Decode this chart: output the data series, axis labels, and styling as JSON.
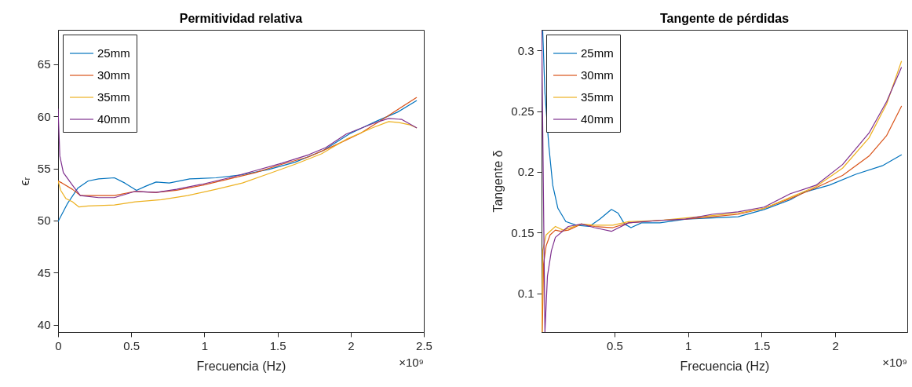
{
  "chart_data": [
    {
      "type": "line",
      "title": "Permitividad relativa",
      "xlabel": "Frecuencia (Hz)",
      "ylabel": "ϵᵣ",
      "annotations": [
        "×10⁹"
      ],
      "xlim": [
        0,
        2.5
      ],
      "ylim": [
        39.3,
        68.3
      ],
      "xticks": [
        0,
        0.5,
        1,
        1.5,
        2,
        2.5
      ],
      "yticks": [
        40,
        45,
        50,
        55,
        60,
        65
      ],
      "grid": false,
      "legend": "top left",
      "line_style": "solid",
      "series": [
        {
          "name": "25mm",
          "color": "#0072bd",
          "x": [
            0,
            0.063,
            0.134,
            0.206,
            0.277,
            0.385,
            0.456,
            0.536,
            0.6,
            0.67,
            0.76,
            0.9,
            1.08,
            1.26,
            1.44,
            1.62,
            1.81,
            1.99,
            2.17,
            2.32,
            2.45
          ],
          "values": [
            49.9,
            51.6,
            53.1,
            53.8,
            54.0,
            54.1,
            53.6,
            52.9,
            53.3,
            53.7,
            53.6,
            54.0,
            54.1,
            54.4,
            54.9,
            55.6,
            56.7,
            58.3,
            59.5,
            60.4,
            61.5
          ]
        },
        {
          "name": "30mm",
          "color": "#d95319",
          "x": [
            0,
            0.027,
            0.098,
            0.152,
            0.277,
            0.385,
            0.527,
            0.67,
            0.81,
            0.99,
            1.17,
            1.35,
            1.53,
            1.71,
            1.89,
            2.07,
            2.25,
            2.45
          ],
          "values": [
            53.8,
            53.6,
            53.0,
            52.4,
            52.4,
            52.4,
            52.8,
            52.7,
            52.9,
            53.4,
            54.0,
            54.6,
            55.4,
            56.1,
            57.2,
            58.4,
            60.0,
            61.8
          ]
        },
        {
          "name": "35mm",
          "color": "#edb120",
          "x": [
            0,
            0.018,
            0.054,
            0.098,
            0.143,
            0.206,
            0.385,
            0.527,
            0.706,
            0.885,
            1.08,
            1.26,
            1.44,
            1.62,
            1.8,
            1.97,
            2.15,
            2.26,
            2.33,
            2.4,
            2.45
          ],
          "values": [
            53.8,
            52.9,
            52.1,
            51.8,
            51.3,
            51.4,
            51.5,
            51.8,
            52.0,
            52.4,
            53.0,
            53.6,
            54.5,
            55.4,
            56.4,
            57.8,
            58.9,
            59.5,
            59.4,
            59.2,
            58.9
          ]
        },
        {
          "name": "40mm",
          "color": "#7e2f8e",
          "x": [
            0,
            0.012,
            0.036,
            0.098,
            0.152,
            0.277,
            0.385,
            0.527,
            0.67,
            0.81,
            0.99,
            1.17,
            1.35,
            1.53,
            1.71,
            1.83,
            1.97,
            2.15,
            2.26,
            2.35,
            2.45
          ],
          "values": [
            60.7,
            56.2,
            54.6,
            53.4,
            52.4,
            52.2,
            52.2,
            52.8,
            52.7,
            53.0,
            53.5,
            54.1,
            54.8,
            55.5,
            56.3,
            57.0,
            58.3,
            59.3,
            59.8,
            59.7,
            58.9
          ]
        }
      ]
    },
    {
      "type": "line",
      "title": "Tangente de pérdidas",
      "xlabel": "Frecuencia (Hz)",
      "ylabel": "Tangente δ",
      "annotations": [
        "×10⁹"
      ],
      "xlim": [
        0.004,
        2.49
      ],
      "ylim": [
        0.068,
        0.317
      ],
      "xticks": [
        0.5,
        1,
        1.5,
        2
      ],
      "yticks": [
        0.1,
        0.15,
        0.2,
        0.25,
        0.3
      ],
      "grid": false,
      "legend": "top left",
      "line_style": "solid",
      "series": [
        {
          "name": "25mm",
          "color": "#0072bd",
          "x": [
            0.012,
            0.027,
            0.053,
            0.08,
            0.115,
            0.169,
            0.24,
            0.328,
            0.399,
            0.479,
            0.524,
            0.568,
            0.612,
            0.683,
            0.808,
            0.985,
            1.163,
            1.34,
            1.518,
            1.695,
            1.784,
            1.96,
            2.14,
            2.32,
            2.45
          ],
          "values": [
            0.316,
            0.265,
            0.222,
            0.189,
            0.17,
            0.159,
            0.156,
            0.155,
            0.161,
            0.169,
            0.166,
            0.157,
            0.154,
            0.158,
            0.158,
            0.161,
            0.162,
            0.163,
            0.169,
            0.177,
            0.183,
            0.189,
            0.198,
            0.205,
            0.214
          ]
        },
        {
          "name": "30mm",
          "color": "#d95319",
          "x": [
            0.009,
            0.018,
            0.035,
            0.062,
            0.098,
            0.133,
            0.186,
            0.275,
            0.364,
            0.488,
            0.595,
            0.808,
            0.985,
            1.163,
            1.34,
            1.518,
            1.695,
            1.87,
            2.05,
            2.23,
            2.35,
            2.45
          ],
          "values": [
            0.068,
            0.124,
            0.139,
            0.148,
            0.152,
            0.151,
            0.152,
            0.157,
            0.155,
            0.154,
            0.158,
            0.16,
            0.161,
            0.163,
            0.165,
            0.17,
            0.178,
            0.187,
            0.197,
            0.213,
            0.23,
            0.254
          ]
        },
        {
          "name": "35mm",
          "color": "#edb120",
          "x": [
            0.005,
            0.012,
            0.035,
            0.098,
            0.151,
            0.275,
            0.364,
            0.488,
            0.595,
            0.808,
            0.985,
            1.163,
            1.34,
            1.518,
            1.695,
            1.87,
            2.05,
            2.23,
            2.35,
            2.45
          ],
          "values": [
            0.068,
            0.135,
            0.148,
            0.155,
            0.152,
            0.157,
            0.156,
            0.156,
            0.159,
            0.16,
            0.162,
            0.164,
            0.166,
            0.17,
            0.179,
            0.188,
            0.203,
            0.228,
            0.256,
            0.291
          ]
        },
        {
          "name": "40mm",
          "color": "#7e2f8e",
          "x": [
            0.005,
            0.027,
            0.044,
            0.071,
            0.098,
            0.186,
            0.275,
            0.364,
            0.479,
            0.595,
            0.808,
            0.985,
            1.163,
            1.34,
            1.518,
            1.695,
            1.87,
            2.05,
            2.23,
            2.35,
            2.45
          ],
          "values": [
            0.316,
            0.068,
            0.114,
            0.135,
            0.146,
            0.155,
            0.157,
            0.154,
            0.151,
            0.158,
            0.16,
            0.161,
            0.165,
            0.167,
            0.171,
            0.182,
            0.189,
            0.206,
            0.232,
            0.258,
            0.286
          ]
        }
      ]
    }
  ]
}
